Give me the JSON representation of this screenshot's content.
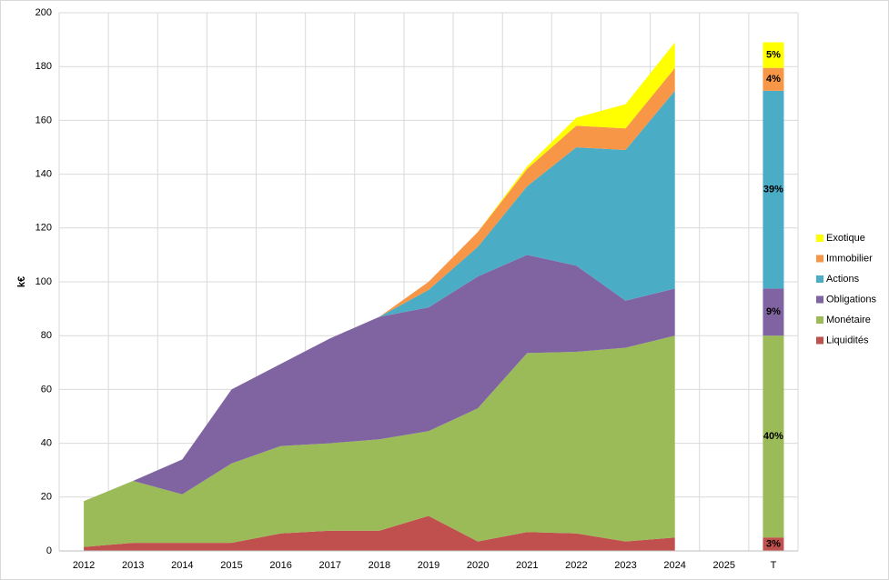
{
  "chart_data": {
    "type": "stacked-area",
    "y_label": "k€",
    "categories": [
      "2012",
      "2013",
      "2014",
      "2015",
      "2016",
      "2017",
      "2018",
      "2019",
      "2020",
      "2021",
      "2022",
      "2023",
      "2024",
      "2025",
      "T"
    ],
    "ylim": [
      0,
      200
    ],
    "yticks": [
      0,
      20,
      40,
      60,
      80,
      100,
      120,
      140,
      160,
      180,
      200
    ],
    "grid": true,
    "legend": "right",
    "series": [
      {
        "name": "Liquidités",
        "color": "#c0504d",
        "values": [
          1.5,
          3,
          3,
          3,
          6.5,
          7.5,
          7.5,
          13,
          3.5,
          7,
          6.5,
          3.5,
          5,
          null,
          5
        ],
        "share_label": "3%"
      },
      {
        "name": "Monétaire",
        "color": "#9bbb59",
        "values": [
          17,
          23,
          18,
          29.5,
          32.5,
          32.5,
          34,
          31.5,
          49.5,
          66.5,
          67.5,
          72,
          75,
          null,
          75
        ],
        "share_label": "40%"
      },
      {
        "name": "Obligations",
        "color": "#8064a2",
        "values": [
          0,
          0,
          13,
          27.5,
          30.5,
          39,
          45.5,
          46,
          49,
          36.5,
          32,
          17.5,
          17.5,
          null,
          17.5
        ],
        "share_label": "9%"
      },
      {
        "name": "Actions",
        "color": "#4bacc6",
        "values": [
          0,
          0,
          0,
          0,
          0,
          0,
          0,
          6.5,
          11,
          25.5,
          44,
          56,
          73.5,
          null,
          73.5
        ],
        "share_label": "39%"
      },
      {
        "name": "Immobilier",
        "color": "#f79646",
        "values": [
          0,
          0,
          0,
          0,
          0,
          0,
          0,
          3,
          5.5,
          6.5,
          8,
          8,
          8.5,
          null,
          8.5
        ],
        "share_label": "4%"
      },
      {
        "name": "Exotique",
        "color": "#ffff00",
        "values": [
          0,
          0,
          0,
          0,
          0,
          0,
          0,
          0,
          0,
          1,
          3,
          9,
          9.5,
          null,
          9.5
        ],
        "share_label": "5%"
      }
    ]
  }
}
